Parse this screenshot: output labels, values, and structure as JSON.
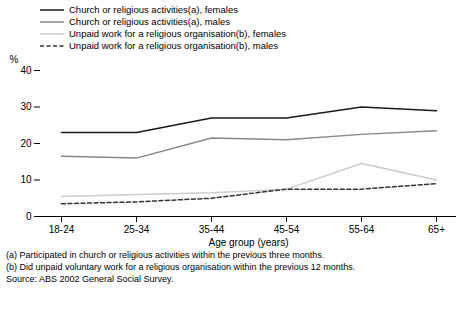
{
  "chart_data": {
    "type": "line",
    "categories": [
      "18-24",
      "25-34",
      "35-44",
      "45-54",
      "55-64",
      "65+"
    ],
    "series": [
      {
        "name": "Church or religious activities(a),  females",
        "color": "#1a1a1a",
        "line_style": "solid",
        "values": [
          23,
          23,
          27,
          27,
          30,
          29
        ]
      },
      {
        "name": "Church or religious activities(a),  males",
        "color": "#888888",
        "line_style": "solid",
        "values": [
          16.5,
          16,
          21.5,
          21,
          22.5,
          23.5
        ]
      },
      {
        "name": "Unpaid work for a religious organisation(b),  females",
        "color": "#cccccc",
        "line_style": "solid",
        "values": [
          5.5,
          6,
          6.5,
          7.5,
          14.5,
          10
        ]
      },
      {
        "name": "Unpaid work for a religious organisation(b),  males",
        "color": "#333333",
        "line_style": "dashed",
        "values": [
          3.5,
          4,
          5,
          7.5,
          7.5,
          9
        ]
      }
    ],
    "xlabel": "Age group (years)",
    "ylabel": "%",
    "ylim": [
      0,
      40
    ],
    "yticks": [
      0,
      10,
      20,
      30,
      40
    ],
    "grid": false,
    "legend": "upper left",
    "annotations": [
      "(a) Participated in church or religious activities within the previous three months.",
      "(b) Did unpaid voluntary work for a religious organisation within the previous 12 months.",
      "Source: ABS 2002 General Social Survey."
    ]
  }
}
